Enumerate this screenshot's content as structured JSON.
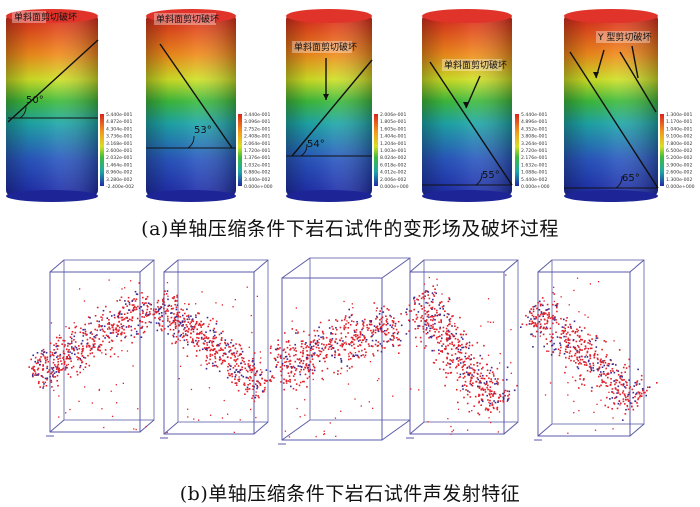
{
  "colors": {
    "contour_top": "#d7261e",
    "contour_mid_orange": "#f39a1b",
    "contour_mid_yellow": "#d8df24",
    "contour_green": "#35b53a",
    "contour_teal": "#17a2a8",
    "contour_bottom": "#2030b4",
    "ae_point": "#e0202a",
    "ae_point_dark": "#3a2a90",
    "box_line": "#5a5aa8"
  },
  "panel_a": {
    "caption": "(a)单轴压缩条件下岩石试件的变形场及破坏过程",
    "specimens": [
      {
        "label": "单斜面剪切破坏",
        "angle": "50°",
        "legend_ticks": [
          "5.440e-001",
          "4.872e-001",
          "4.304e-001",
          "3.736e-001",
          "3.168e-001",
          "2.600e-001",
          "2.032e-001",
          "1.464e-001",
          "8.960e-002",
          "3.280e-002",
          "-2.400e-002"
        ]
      },
      {
        "label": "单斜面剪切破坏",
        "angle": "53°",
        "legend_ticks": [
          "3.440e-001",
          "3.096e-001",
          "2.752e-001",
          "2.408e-001",
          "2.064e-001",
          "1.720e-001",
          "1.376e-001",
          "1.032e-001",
          "6.880e-002",
          "3.440e-002",
          "0.000e+000"
        ]
      },
      {
        "label": "单斜面剪切破坏",
        "angle": "54°",
        "legend_ticks": [
          "2.006e-001",
          "1.805e-001",
          "1.605e-001",
          "1.404e-001",
          "1.204e-001",
          "1.003e-001",
          "8.024e-002",
          "6.018e-002",
          "4.012e-002",
          "2.006e-002",
          "0.000e+000"
        ]
      },
      {
        "label": "单斜面剪切破坏",
        "angle": "55°",
        "legend_ticks": [
          "5.440e-001",
          "4.896e-001",
          "4.352e-001",
          "3.808e-001",
          "3.264e-001",
          "2.720e-001",
          "2.176e-001",
          "1.632e-001",
          "1.088e-001",
          "5.440e-002",
          "0.000e+000"
        ]
      },
      {
        "label": "Y 型剪切破坏",
        "angle": "65°",
        "legend_ticks": [
          "1.300e-001",
          "1.170e-001",
          "1.040e-001",
          "9.100e-002",
          "7.800e-002",
          "6.500e-002",
          "5.200e-002",
          "3.900e-002",
          "2.600e-002",
          "1.300e-002",
          "0.000e+000"
        ]
      }
    ]
  },
  "panel_b": {
    "caption": "(b)单轴压缩条件下岩石试件声发射特征",
    "boxes": [
      {
        "name": "ae-box-1"
      },
      {
        "name": "ae-box-2"
      },
      {
        "name": "ae-box-3"
      },
      {
        "name": "ae-box-4"
      },
      {
        "name": "ae-box-5"
      }
    ]
  }
}
